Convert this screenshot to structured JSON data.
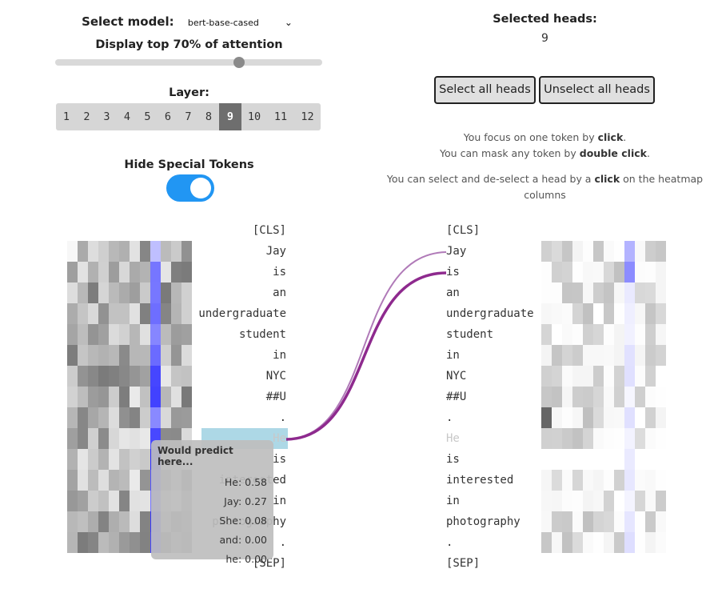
{
  "controls": {
    "model_label": "Select model:",
    "model_value": "bert-base-cased",
    "threshold_label": "Display top 70% of attention",
    "threshold_percent": 70,
    "layer_label": "Layer:",
    "layers": [
      "1",
      "2",
      "3",
      "4",
      "5",
      "6",
      "7",
      "8",
      "9",
      "10",
      "11",
      "12"
    ],
    "active_layer": "9",
    "hide_label": "Hide Special Tokens",
    "hide_enabled": true
  },
  "heads": {
    "selected_label": "Selected heads:",
    "selected_value": "9",
    "select_all_label": "Select all heads",
    "unselect_all_label": "Unselect all heads"
  },
  "help": {
    "line1_prefix": "You focus on one token by ",
    "line1_bold": "click",
    "line1_suffix": ".",
    "line2_prefix": "You can mask any token by ",
    "line2_bold": "double click",
    "line2_suffix": ".",
    "line3_prefix": "You can select and de-select a head by a ",
    "line3_bold": "click",
    "line3_suffix": " on the heatmap columns"
  },
  "tokens": [
    "[CLS]",
    "Jay",
    "is",
    "an",
    "undergraduate",
    "student",
    "in",
    "NYC",
    "##U",
    ".",
    "He",
    "is",
    "interested",
    "in",
    "photography",
    ".",
    "[SEP]"
  ],
  "focused_token": 10,
  "masked_right_token": 10,
  "tooltip": {
    "title": "Would predict here...",
    "predictions": [
      {
        "text": "He: 0.58"
      },
      {
        "text": "Jay: 0.27"
      },
      {
        "text": "She: 0.08"
      },
      {
        "text": "and: 0.00"
      },
      {
        "text": "he: 0.00"
      }
    ]
  },
  "colors": {
    "accent_toggle": "#2196F3",
    "focus_token_bg": "#add8e6",
    "arc_color": "#8e2a8e",
    "head_color": "#3333ff"
  }
}
